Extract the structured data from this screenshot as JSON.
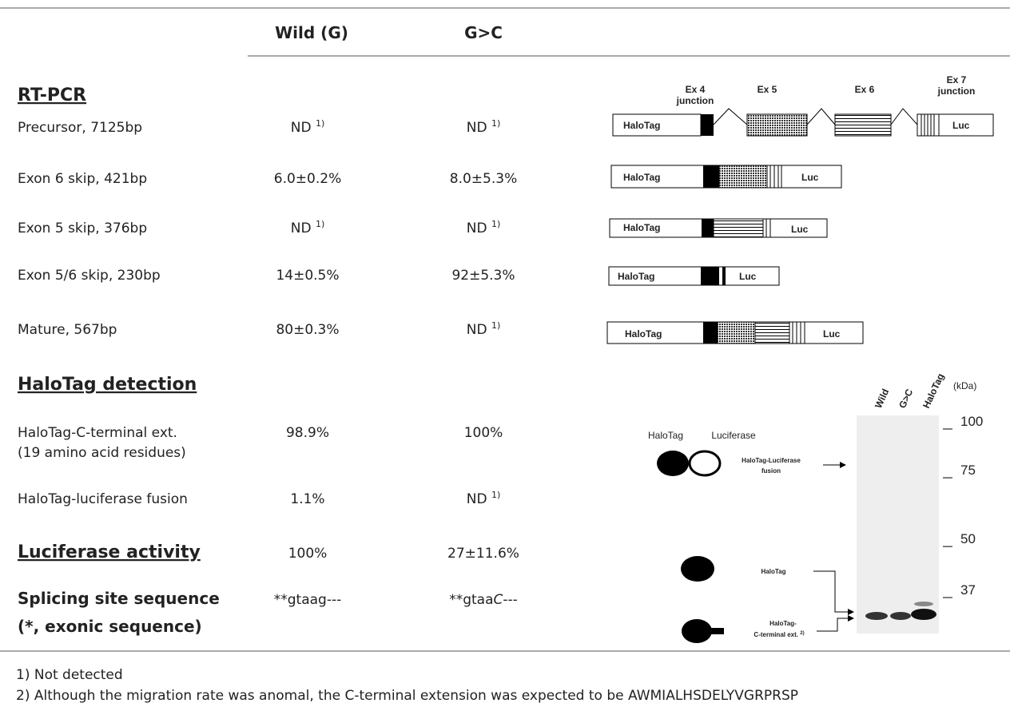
{
  "header": {
    "columns": [
      "Wild (G)",
      "G>C"
    ]
  },
  "rtpcr": {
    "title": "RT-PCR",
    "rows": [
      {
        "label": "Precursor,  7125bp",
        "wild": "ND",
        "wild_note": "1)",
        "gc": "ND",
        "gc_note": "1)"
      },
      {
        "label": "Exon 6 skip, 421bp",
        "wild": "6.0±0.2%",
        "gc": "8.0±5.3%"
      },
      {
        "label": "Exon 5 skip, 376bp",
        "wild": "ND",
        "wild_note": "1)",
        "gc": "ND",
        "gc_note": "1)"
      },
      {
        "label": "Exon 5/6 skip, 230bp",
        "wild": "14±0.5%",
        "gc": "92±5.3%"
      },
      {
        "label": "Mature, 567bp",
        "wild": "80±0.3%",
        "gc": "ND",
        "gc_note": "1)"
      }
    ]
  },
  "halotag": {
    "title": "HaloTag  detection",
    "rows": [
      {
        "label": [
          "HaloTag-C-terminal ext.",
          "(19 amino acid residues)"
        ],
        "wild": "98.9%",
        "gc": "100%"
      },
      {
        "label": "HaloTag-luciferase  fusion",
        "wild": "1.1%",
        "gc": "ND",
        "gc_note": "1)"
      }
    ]
  },
  "luciferase": {
    "title": "Luciferase activity",
    "wild": "100%",
    "gc": "27±11.6%"
  },
  "splicing": {
    "title": [
      "Splicing site sequence",
      "(*, exonic sequence)"
    ],
    "wild": "**gtaag---",
    "gc_parts": [
      "**gtaa",
      "C",
      "---"
    ]
  },
  "diagram": {
    "exons": [
      "Ex 4",
      "junction",
      "Ex 5",
      "Ex 6",
      "Ex 7",
      "junction"
    ],
    "halotag": "HaloTag",
    "luc": "Luc"
  },
  "gel": {
    "lanes": [
      "Wild",
      "G>C",
      "HaloTag"
    ],
    "unit": "(kDa)",
    "markers": [
      100,
      75,
      50,
      37
    ],
    "legend": [
      "HaloTag",
      "Luciferase"
    ],
    "fusion_label": [
      "HaloTag-Luciferase",
      "fusion"
    ],
    "halotag_label": "HaloTag",
    "ext_label": [
      "HaloTag-",
      "C-terminal ext.",
      "2)"
    ]
  },
  "footnotes": [
    "1) Not detected",
    "2) Although the migration rate was anomal, the C-terminal extension was expected to be AWMIALHSDELYVGRPRSP"
  ]
}
